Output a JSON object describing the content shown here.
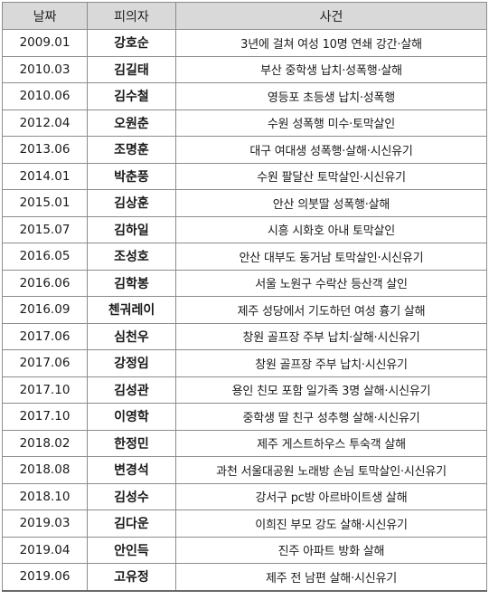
{
  "table": {
    "headers": {
      "date": "날짜",
      "suspect": "피의자",
      "case": "사건"
    },
    "rows": [
      {
        "date": "2009.01",
        "suspect": "강호순",
        "case": "3년에 걸쳐 여성 10명 연쇄 강간·살해"
      },
      {
        "date": "2010.03",
        "suspect": "김길태",
        "case": "부산 중학생 납치·성폭행·살해"
      },
      {
        "date": "2010.06",
        "suspect": "김수철",
        "case": "영등포 초등생 납치·성폭행"
      },
      {
        "date": "2012.04",
        "suspect": "오원춘",
        "case": "수원 성폭행 미수·토막살인"
      },
      {
        "date": "2013.06",
        "suspect": "조명훈",
        "case": "대구 여대생 성폭행·살해·시신유기"
      },
      {
        "date": "2014.01",
        "suspect": "박춘풍",
        "case": "수원 팔달산 토막살인·시신유기"
      },
      {
        "date": "2015.01",
        "suspect": "김상훈",
        "case": "안산 의붓딸 성폭행·살해"
      },
      {
        "date": "2015.07",
        "suspect": "김하일",
        "case": "시흥 시화호 아내 토막살인"
      },
      {
        "date": "2016.05",
        "suspect": "조성호",
        "case": "안산 대부도 동거남 토막살인·시신유기"
      },
      {
        "date": "2016.06",
        "suspect": "김학봉",
        "case": "서울 노원구 수락산 등산객 살인"
      },
      {
        "date": "2016.09",
        "suspect": "첸궈레이",
        "case": "제주 성당에서 기도하던 여성 흉기 살해"
      },
      {
        "date": "2017.06",
        "suspect": "심천우",
        "case": "창원 골프장 주부 납치·살해·시신유기"
      },
      {
        "date": "2017.06",
        "suspect": "강정임",
        "case": "창원 골프장 주부 납치·시신유기"
      },
      {
        "date": "2017.10",
        "suspect": "김성관",
        "case": "용인 친모 포함 일가족 3명 살해·시신유기"
      },
      {
        "date": "2017.10",
        "suspect": "이영학",
        "case": "중학생 딸 친구 성추행 살해·시신유기"
      },
      {
        "date": "2018.02",
        "suspect": "한정민",
        "case": "제주 게스트하우스 투숙객 살해"
      },
      {
        "date": "2018.08",
        "suspect": "변경석",
        "case": "과천 서울대공원 노래방 손님 토막살인·시신유기"
      },
      {
        "date": "2018.10",
        "suspect": "김성수",
        "case": "강서구 pc방 아르바이트생 살해"
      },
      {
        "date": "2019.03",
        "suspect": "김다운",
        "case": "이희진 부모 강도 살해·시신유기"
      },
      {
        "date": "2019.04",
        "suspect": "안인득",
        "case": "진주 아파트 방화 살해"
      },
      {
        "date": "2019.06",
        "suspect": "고유정",
        "case": "제주 전 남편 살해·시신유기"
      }
    ]
  }
}
